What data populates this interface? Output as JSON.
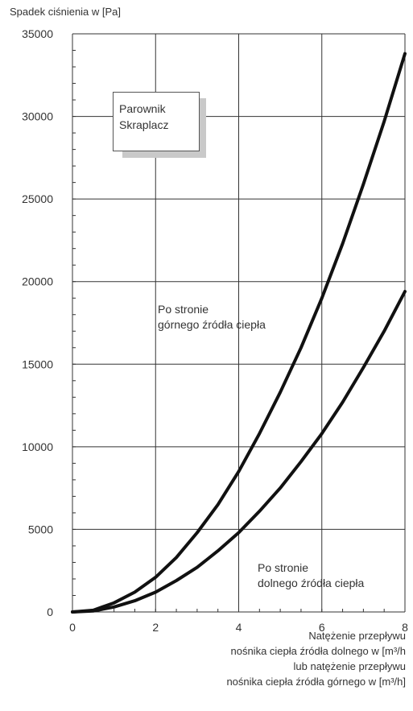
{
  "chart_data": {
    "type": "line",
    "ylabel": "Spadek ciśnienia w [Pa]",
    "xlabel_lines": [
      "Natężenie przepływu",
      "nośnika ciepła źródła dolnego w [m³/h",
      "lub natężenie przepływu",
      "nośnika ciepła źródła górnego w [m³/h]"
    ],
    "xlim": [
      0,
      8
    ],
    "ylim": [
      0,
      35000
    ],
    "x_ticks": [
      0,
      2,
      4,
      6,
      8
    ],
    "y_ticks": [
      0,
      5000,
      10000,
      15000,
      20000,
      25000,
      30000,
      35000
    ],
    "grid": true,
    "legend": [
      "Parownik",
      "Skraplacz"
    ],
    "series": [
      {
        "name": "Po stronie górnego źródła ciepła",
        "label_lines": [
          "Po stronie",
          "górnego źródła ciepła"
        ],
        "x": [
          0,
          0.5,
          1,
          1.5,
          2,
          2.5,
          3,
          3.5,
          4,
          4.5,
          5,
          5.5,
          6,
          6.5,
          7,
          7.5,
          8
        ],
        "values": [
          0,
          100,
          550,
          1200,
          2100,
          3300,
          4800,
          6500,
          8500,
          10800,
          13300,
          16000,
          19000,
          22300,
          25900,
          29700,
          33800
        ]
      },
      {
        "name": "Po stronie dolnego źródła ciepła",
        "label_lines": [
          "Po stronie",
          "dolnego źródła ciepła"
        ],
        "x": [
          0,
          0.5,
          1,
          1.5,
          2,
          2.5,
          3,
          3.5,
          4,
          4.5,
          5,
          5.5,
          6,
          6.5,
          7,
          7.5,
          8
        ],
        "values": [
          0,
          60,
          300,
          680,
          1200,
          1900,
          2700,
          3700,
          4800,
          6100,
          7500,
          9100,
          10800,
          12700,
          14800,
          17000,
          19400
        ]
      }
    ]
  }
}
